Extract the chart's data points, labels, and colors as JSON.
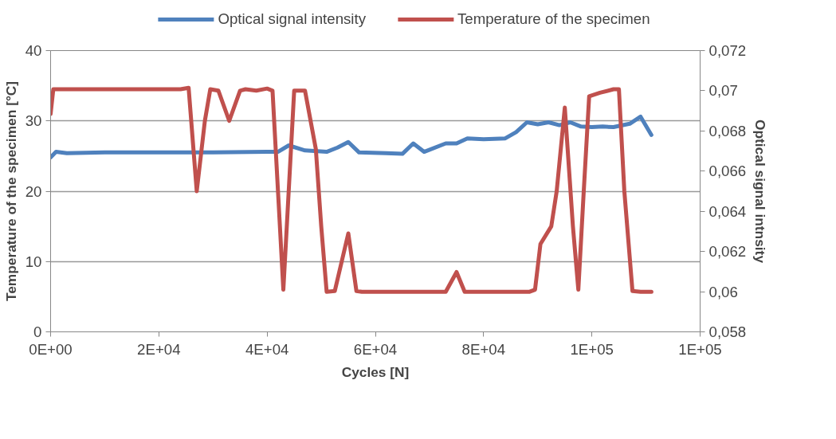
{
  "chart_data": {
    "type": "line",
    "xlabel": "Cycles [N]",
    "ylabel": "Temperature of the specimen [°C]",
    "y2label": "Optical signal intnsity",
    "xlim": [
      0,
      120000
    ],
    "xticks": [
      {
        "value": 0,
        "label": "0E+00"
      },
      {
        "value": 20000,
        "label": "2E+04"
      },
      {
        "value": 40000,
        "label": "4E+04"
      },
      {
        "value": 60000,
        "label": "6E+04"
      },
      {
        "value": 80000,
        "label": "8E+04"
      },
      {
        "value": 100000,
        "label": "1E+05"
      },
      {
        "value": 120000,
        "label": "1E+05"
      }
    ],
    "ylim": [
      0,
      40
    ],
    "yticks": [
      0,
      10,
      20,
      30,
      40
    ],
    "y2lim": [
      0.058,
      0.072
    ],
    "y2ticks": [
      {
        "value": 0.058,
        "label": "0,058"
      },
      {
        "value": 0.06,
        "label": "0,06"
      },
      {
        "value": 0.062,
        "label": "0,062"
      },
      {
        "value": 0.064,
        "label": "0,064"
      },
      {
        "value": 0.066,
        "label": "0,066"
      },
      {
        "value": 0.068,
        "label": "0,068"
      },
      {
        "value": 0.07,
        "label": "0,07"
      },
      {
        "value": 0.072,
        "label": "0,072"
      }
    ],
    "grid": "y",
    "legend": "top",
    "marker": "none",
    "line_style": "solid",
    "series": [
      {
        "name": "Optical signal intensity",
        "color": "#4f81bd",
        "axis": "y2",
        "x": [
          0,
          1000,
          3000,
          10000,
          30000,
          40000,
          42000,
          44000,
          47000,
          51000,
          53000,
          55000,
          57000,
          62000,
          65000,
          67000,
          69000,
          73000,
          75000,
          77000,
          80000,
          84000,
          86000,
          88000,
          90000,
          92000,
          94000,
          96000,
          98000,
          100000,
          102000,
          104000,
          107000,
          109000,
          111000
        ],
        "values": [
          0.06668,
          0.06696,
          0.06689,
          0.06693,
          0.06693,
          0.06696,
          0.06696,
          0.06728,
          0.06703,
          0.06696,
          0.06717,
          0.06745,
          0.06693,
          0.06689,
          0.06686,
          0.06738,
          0.06696,
          0.06738,
          0.06738,
          0.06763,
          0.06759,
          0.06763,
          0.06794,
          0.06843,
          0.06833,
          0.06843,
          0.06829,
          0.06843,
          0.06822,
          0.06819,
          0.06822,
          0.06819,
          0.06836,
          0.06871,
          0.0678
        ]
      },
      {
        "name": "Temperature of the specimen",
        "color": "#c0504d",
        "axis": "y",
        "x": [
          0,
          500,
          24000,
          25500,
          27000,
          28500,
          29500,
          31000,
          33000,
          35000,
          36000,
          38000,
          40000,
          41000,
          43000,
          45000,
          47000,
          49000,
          50000,
          51000,
          52500,
          55000,
          56500,
          57500,
          73000,
          75000,
          76500,
          88500,
          89500,
          90500,
          92500,
          93500,
          95000,
          96500,
          97500,
          98500,
          99500,
          101500,
          104000,
          105000,
          106000,
          107500,
          109000,
          111000
        ],
        "values": [
          31,
          34.5,
          34.5,
          34.7,
          20,
          30,
          34.5,
          34.3,
          30,
          34.3,
          34.5,
          34.3,
          34.6,
          34.3,
          6,
          34.3,
          34.3,
          26,
          15,
          5.7,
          5.8,
          14,
          5.8,
          5.7,
          5.7,
          8.5,
          5.7,
          5.7,
          6,
          12.5,
          15,
          20,
          31.9,
          15,
          6,
          20,
          33.5,
          34,
          34.5,
          34.5,
          20,
          5.8,
          5.7,
          5.7
        ]
      }
    ]
  }
}
